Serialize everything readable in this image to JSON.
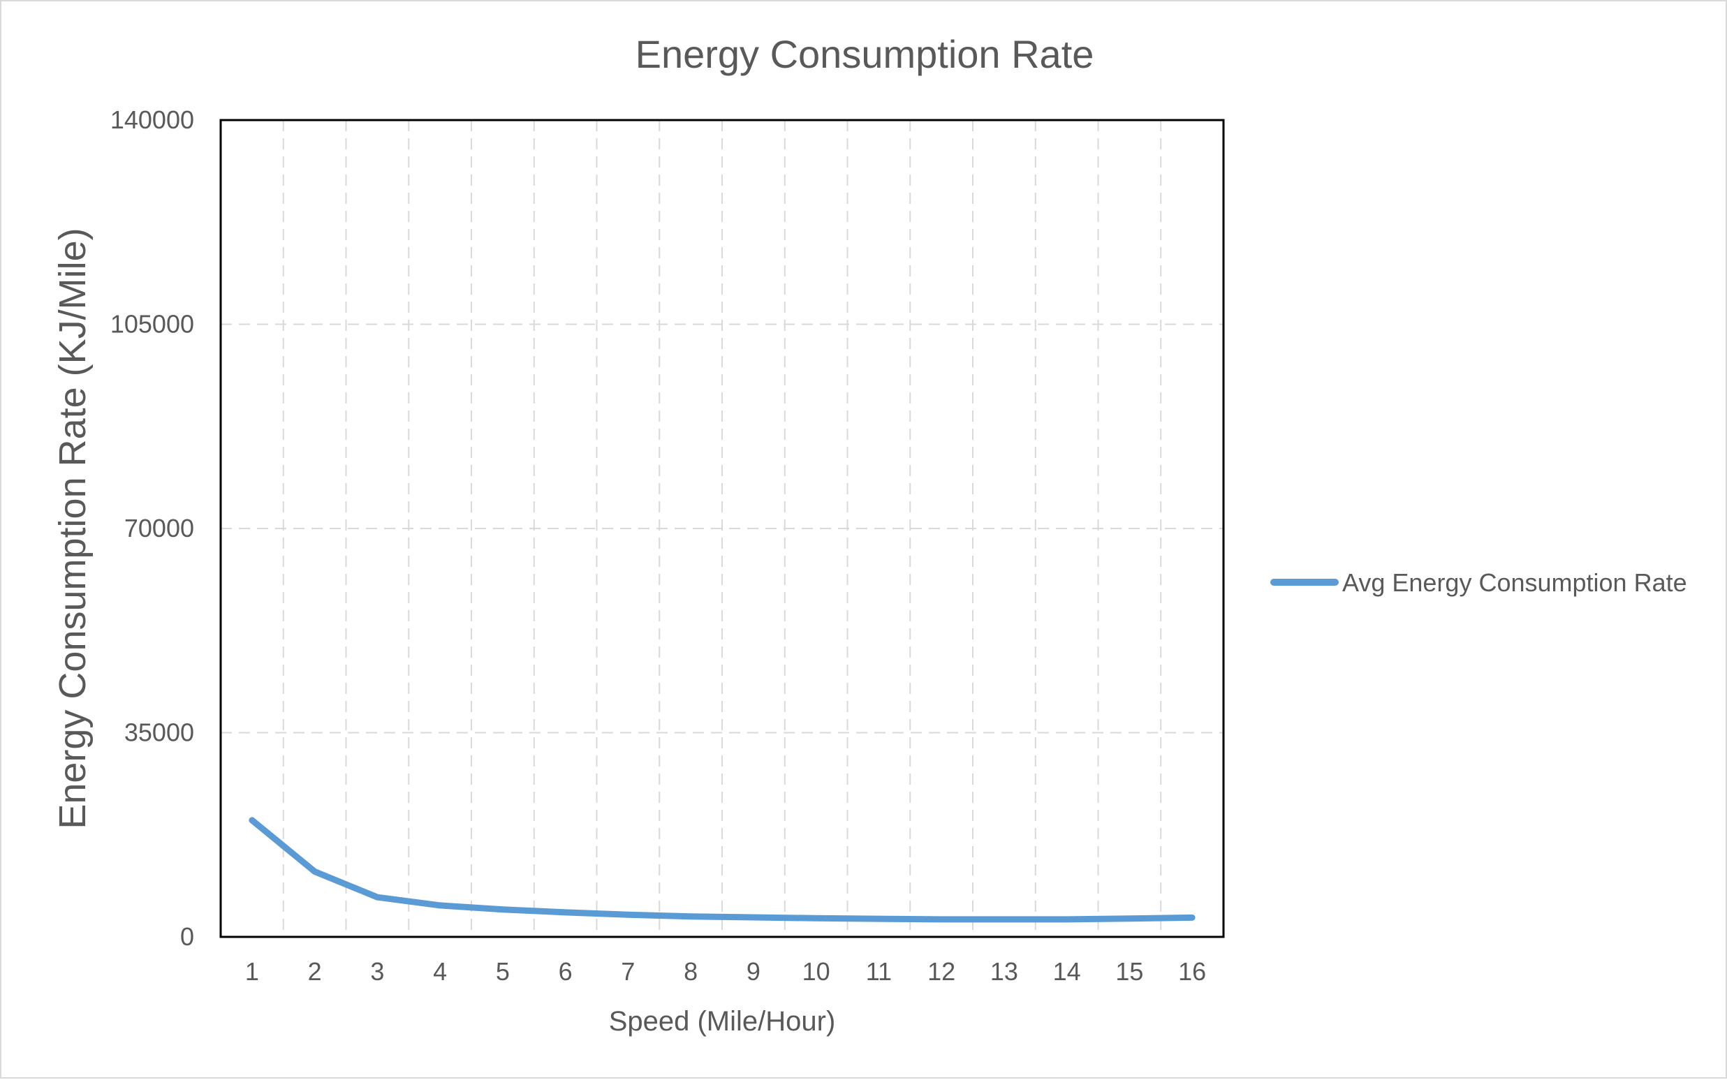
{
  "chart_data": {
    "type": "line",
    "title": "Energy Consumption Rate",
    "xlabel": "Speed (Mile/Hour)",
    "ylabel": "Energy Consumption Rate  (KJ/Mile)",
    "x": [
      1,
      2,
      3,
      4,
      5,
      6,
      7,
      8,
      9,
      10,
      11,
      12,
      13,
      14,
      15,
      16
    ],
    "categories": [
      "1",
      "2",
      "3",
      "4",
      "5",
      "6",
      "7",
      "8",
      "9",
      "10",
      "11",
      "12",
      "13",
      "14",
      "15",
      "16"
    ],
    "series": [
      {
        "name": "Avg Energy Consumption Rate",
        "values": [
          20000,
          11200,
          6800,
          5400,
          4700,
          4200,
          3800,
          3500,
          3350,
          3200,
          3100,
          3000,
          3000,
          3000,
          3150,
          3300
        ],
        "color": "#5b9bd5"
      }
    ],
    "ylim": [
      0,
      140000
    ],
    "yticks": [
      0,
      35000,
      70000,
      105000,
      140000
    ],
    "ytick_labels": [
      "0",
      "35000",
      "70000",
      "105000",
      "140000"
    ],
    "grid": true,
    "grid_style": "dashed",
    "legend_position": "right"
  }
}
